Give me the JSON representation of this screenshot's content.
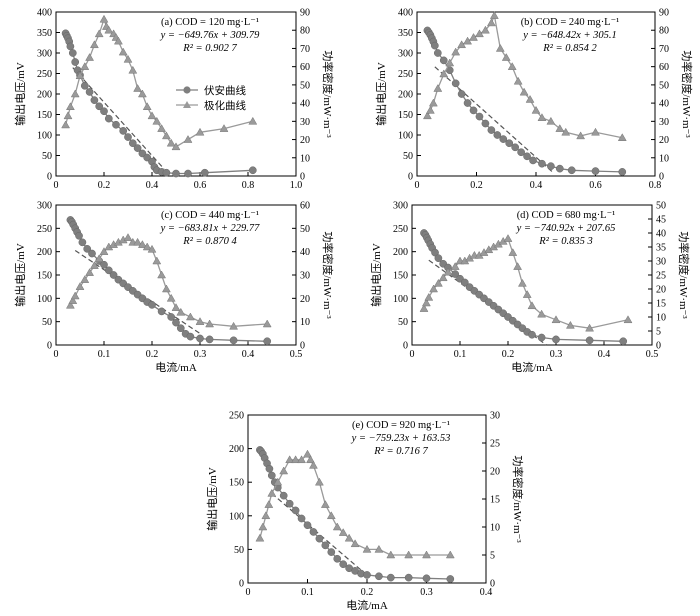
{
  "figure": {
    "xlabel": "电流/mA",
    "ylabel_left": "输出电压/mV",
    "ylabel_right": "功率密度/mW·m⁻³",
    "legend": [
      "伏安曲线",
      "极化曲线"
    ],
    "colors": {
      "voltage": "#7f7f7f",
      "power": "#9a9a9a",
      "fit": "#555555",
      "axis": "#000000"
    }
  },
  "chart_data": [
    {
      "type": "scatter",
      "panel": "a",
      "annotation": [
        "(a) COD = 120 mg·L⁻¹",
        "y = −649.76x + 309.79",
        "R² = 0.902 7"
      ],
      "legend_visible": true,
      "xlim": [
        0,
        1.0
      ],
      "xticks": [
        "0",
        "0.2",
        "0.4",
        "0.6",
        "0.8",
        "1.0"
      ],
      "ylim_left": [
        0,
        400
      ],
      "yticks_left": [
        "0",
        "50",
        "100",
        "150",
        "200",
        "250",
        "300",
        "350",
        "400"
      ],
      "ylim_right": [
        0,
        90
      ],
      "yticks_right": [
        "0",
        "10",
        "20",
        "30",
        "40",
        "50",
        "60",
        "70",
        "80",
        "90"
      ],
      "fit": {
        "slope": -649.76,
        "intercept": 309.79,
        "x_range": [
          0.07,
          0.45
        ]
      },
      "series": [
        {
          "name": "伏安曲线",
          "marker": "circle",
          "x": [
            0.04,
            0.045,
            0.05,
            0.055,
            0.06,
            0.07,
            0.08,
            0.09,
            0.1,
            0.12,
            0.14,
            0.16,
            0.18,
            0.2,
            0.22,
            0.25,
            0.28,
            0.3,
            0.32,
            0.34,
            0.36,
            0.38,
            0.4,
            0.41,
            0.42,
            0.44,
            0.46,
            0.5,
            0.55,
            0.62,
            0.82
          ],
          "y": [
            348,
            342,
            336,
            328,
            316,
            300,
            278,
            258,
            246,
            220,
            205,
            185,
            170,
            158,
            140,
            125,
            110,
            95,
            80,
            68,
            55,
            45,
            35,
            22,
            14,
            10,
            8,
            6,
            6,
            8,
            14
          ]
        },
        {
          "name": "极化曲线",
          "marker": "triangle",
          "x": [
            0.04,
            0.05,
            0.06,
            0.08,
            0.1,
            0.12,
            0.14,
            0.16,
            0.18,
            0.2,
            0.21,
            0.22,
            0.24,
            0.25,
            0.26,
            0.28,
            0.3,
            0.32,
            0.34,
            0.36,
            0.38,
            0.4,
            0.42,
            0.44,
            0.46,
            0.48,
            0.5,
            0.55,
            0.6,
            0.7,
            0.82
          ],
          "y": [
            28,
            33,
            38,
            45,
            55,
            60,
            65,
            72,
            78,
            86,
            82,
            80,
            78,
            76,
            74,
            68,
            64,
            58,
            48,
            45,
            38,
            33,
            30,
            26,
            22,
            18,
            16,
            20,
            24,
            26,
            30
          ]
        }
      ]
    },
    {
      "type": "scatter",
      "panel": "b",
      "annotation": [
        "(b) COD = 240 mg·L⁻¹",
        "y = −648.42x + 305.1",
        "R² = 0.854 2"
      ],
      "legend_visible": false,
      "xlim": [
        0,
        0.8
      ],
      "xticks": [
        "0",
        "0.2",
        "0.4",
        "0.6",
        "0.8"
      ],
      "ylim_left": [
        0,
        400
      ],
      "yticks_left": [
        "0",
        "50",
        "100",
        "150",
        "200",
        "250",
        "300",
        "350",
        "400"
      ],
      "ylim_right": [
        0,
        90
      ],
      "yticks_right": [
        "0",
        "10",
        "20",
        "30",
        "40",
        "50",
        "60",
        "70",
        "80",
        "90"
      ],
      "fit": {
        "slope": -648.42,
        "intercept": 305.1,
        "x_range": [
          0.06,
          0.46
        ]
      },
      "series": [
        {
          "name": "伏安曲线",
          "marker": "circle",
          "x": [
            0.035,
            0.04,
            0.045,
            0.05,
            0.055,
            0.06,
            0.07,
            0.09,
            0.11,
            0.13,
            0.15,
            0.17,
            0.19,
            0.21,
            0.23,
            0.25,
            0.27,
            0.29,
            0.31,
            0.33,
            0.35,
            0.37,
            0.39,
            0.42,
            0.45,
            0.48,
            0.52,
            0.6,
            0.69
          ],
          "y": [
            355,
            350,
            344,
            336,
            328,
            318,
            300,
            282,
            258,
            226,
            200,
            178,
            160,
            145,
            128,
            112,
            100,
            90,
            80,
            70,
            58,
            48,
            38,
            30,
            24,
            18,
            14,
            12,
            10
          ]
        },
        {
          "name": "极化曲线",
          "marker": "triangle",
          "x": [
            0.035,
            0.045,
            0.055,
            0.07,
            0.09,
            0.11,
            0.13,
            0.15,
            0.17,
            0.19,
            0.21,
            0.23,
            0.25,
            0.26,
            0.28,
            0.3,
            0.32,
            0.34,
            0.36,
            0.38,
            0.4,
            0.42,
            0.45,
            0.48,
            0.5,
            0.55,
            0.6,
            0.69
          ],
          "y": [
            33,
            36,
            40,
            48,
            56,
            62,
            68,
            72,
            74,
            76,
            78,
            80,
            84,
            88,
            70,
            65,
            60,
            52,
            46,
            42,
            36,
            32,
            30,
            26,
            24,
            22,
            24,
            21
          ]
        }
      ]
    },
    {
      "type": "scatter",
      "panel": "c",
      "annotation": [
        "(c) COD = 440 mg·L⁻¹",
        "y = −683.81x + 229.77",
        "R² = 0.870 4"
      ],
      "legend_visible": false,
      "xlim": [
        0,
        0.5
      ],
      "xticks": [
        "0",
        "0.1",
        "0.2",
        "0.3",
        "0.4",
        "0.5"
      ],
      "ylim_left": [
        0,
        300
      ],
      "yticks_left": [
        "0",
        "50",
        "100",
        "150",
        "200",
        "250",
        "300"
      ],
      "ylim_right": [
        0,
        60
      ],
      "yticks_right": [
        "0",
        "10",
        "20",
        "30",
        "40",
        "50",
        "60"
      ],
      "fit": {
        "slope": -683.81,
        "intercept": 229.77,
        "x_range": [
          0.04,
          0.3
        ]
      },
      "series": [
        {
          "name": "伏安曲线",
          "marker": "circle",
          "x": [
            0.03,
            0.033,
            0.036,
            0.04,
            0.044,
            0.048,
            0.055,
            0.065,
            0.075,
            0.09,
            0.1,
            0.11,
            0.12,
            0.13,
            0.14,
            0.15,
            0.16,
            0.17,
            0.18,
            0.19,
            0.2,
            0.22,
            0.24,
            0.25,
            0.26,
            0.27,
            0.28,
            0.3,
            0.32,
            0.37,
            0.44
          ],
          "y": [
            268,
            264,
            258,
            250,
            242,
            234,
            220,
            206,
            196,
            180,
            172,
            160,
            150,
            140,
            132,
            124,
            116,
            108,
            100,
            92,
            86,
            72,
            60,
            48,
            36,
            24,
            18,
            14,
            12,
            10,
            8
          ]
        },
        {
          "name": "极化曲线",
          "marker": "triangle",
          "x": [
            0.03,
            0.035,
            0.04,
            0.05,
            0.06,
            0.07,
            0.08,
            0.09,
            0.1,
            0.11,
            0.12,
            0.13,
            0.14,
            0.15,
            0.16,
            0.17,
            0.18,
            0.19,
            0.2,
            0.21,
            0.22,
            0.23,
            0.24,
            0.25,
            0.26,
            0.28,
            0.3,
            0.32,
            0.37,
            0.44
          ],
          "y": [
            17,
            19,
            21,
            25,
            28,
            31,
            34,
            37,
            40,
            42,
            43,
            44,
            45,
            46,
            44,
            44,
            43,
            42,
            41,
            36,
            30,
            24,
            20,
            16,
            14,
            12,
            10,
            9,
            8,
            9
          ]
        }
      ]
    },
    {
      "type": "scatter",
      "panel": "d",
      "annotation": [
        "(d) COD = 680 mg·L⁻¹",
        "y = −740.92x + 207.65",
        "R² = 0.835 3"
      ],
      "legend_visible": false,
      "xlim": [
        0,
        0.5
      ],
      "xticks": [
        "0",
        "0.1",
        "0.2",
        "0.3",
        "0.4",
        "0.5"
      ],
      "ylim_left": [
        0,
        300
      ],
      "yticks_left": [
        "0",
        "50",
        "100",
        "150",
        "200",
        "250",
        "300"
      ],
      "ylim_right": [
        0,
        50
      ],
      "yticks_right": [
        "0",
        "5",
        "10",
        "15",
        "20",
        "25",
        "30",
        "35",
        "40",
        "45",
        "50"
      ],
      "fit": {
        "slope": -740.92,
        "intercept": 207.65,
        "x_range": [
          0.035,
          0.28
        ]
      },
      "series": [
        {
          "name": "伏安曲线",
          "marker": "circle",
          "x": [
            0.025,
            0.028,
            0.031,
            0.034,
            0.038,
            0.042,
            0.048,
            0.055,
            0.065,
            0.075,
            0.09,
            0.1,
            0.11,
            0.12,
            0.13,
            0.14,
            0.15,
            0.16,
            0.17,
            0.18,
            0.19,
            0.2,
            0.21,
            0.22,
            0.23,
            0.24,
            0.25,
            0.27,
            0.3,
            0.37,
            0.44
          ],
          "y": [
            240,
            236,
            230,
            224,
            216,
            208,
            198,
            186,
            174,
            166,
            152,
            142,
            134,
            124,
            116,
            108,
            100,
            92,
            84,
            76,
            68,
            60,
            52,
            44,
            36,
            28,
            22,
            16,
            12,
            10,
            8
          ]
        },
        {
          "name": "极化曲线",
          "marker": "triangle",
          "x": [
            0.025,
            0.03,
            0.035,
            0.045,
            0.055,
            0.065,
            0.075,
            0.09,
            0.1,
            0.11,
            0.12,
            0.13,
            0.14,
            0.15,
            0.16,
            0.17,
            0.18,
            0.19,
            0.2,
            0.21,
            0.22,
            0.23,
            0.24,
            0.25,
            0.27,
            0.3,
            0.33,
            0.37,
            0.45
          ],
          "y": [
            13,
            15,
            17,
            20,
            22,
            24,
            26,
            28,
            30,
            30,
            31,
            32,
            32,
            33,
            34,
            35,
            36,
            37,
            38,
            33,
            28,
            22,
            18,
            14,
            11,
            9,
            7,
            6,
            9
          ]
        }
      ]
    },
    {
      "type": "scatter",
      "panel": "e",
      "annotation": [
        "(e) COD = 920 mg·L⁻¹",
        "y = −759.23x + 163.53",
        "R² = 0.716 7"
      ],
      "legend_visible": false,
      "xlim": [
        0,
        0.4
      ],
      "xticks": [
        "0",
        "0.1",
        "0.2",
        "0.3",
        "0.4"
      ],
      "ylim_left": [
        0,
        250
      ],
      "yticks_left": [
        "0",
        "50",
        "100",
        "150",
        "200",
        "250"
      ],
      "ylim_right": [
        0,
        30
      ],
      "yticks_right": [
        "0",
        "5",
        "10",
        "15",
        "20",
        "25",
        "30"
      ],
      "fit": {
        "slope": -759.23,
        "intercept": 163.53,
        "x_range": [
          0.04,
          0.2
        ]
      },
      "series": [
        {
          "name": "伏安曲线",
          "marker": "circle",
          "x": [
            0.02,
            0.022,
            0.025,
            0.028,
            0.032,
            0.036,
            0.04,
            0.045,
            0.05,
            0.06,
            0.07,
            0.08,
            0.09,
            0.1,
            0.11,
            0.12,
            0.13,
            0.14,
            0.15,
            0.16,
            0.17,
            0.18,
            0.19,
            0.2,
            0.22,
            0.24,
            0.27,
            0.3,
            0.34
          ],
          "y": [
            198,
            196,
            192,
            186,
            178,
            170,
            160,
            150,
            142,
            130,
            118,
            108,
            96,
            86,
            76,
            66,
            56,
            46,
            36,
            28,
            22,
            18,
            14,
            12,
            10,
            8,
            8,
            7,
            6
          ]
        },
        {
          "name": "极化曲线",
          "marker": "triangle",
          "x": [
            0.02,
            0.025,
            0.03,
            0.035,
            0.04,
            0.05,
            0.06,
            0.07,
            0.08,
            0.09,
            0.1,
            0.105,
            0.11,
            0.12,
            0.13,
            0.14,
            0.15,
            0.16,
            0.17,
            0.18,
            0.2,
            0.22,
            0.24,
            0.27,
            0.3,
            0.34
          ],
          "y": [
            8,
            10,
            12,
            14,
            16,
            18,
            20,
            22,
            22,
            22,
            23,
            22,
            21,
            18,
            14,
            12,
            10,
            9,
            8,
            7,
            6,
            6,
            5,
            5,
            5,
            5
          ]
        }
      ]
    }
  ]
}
